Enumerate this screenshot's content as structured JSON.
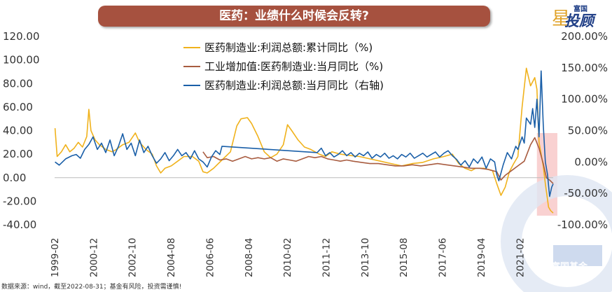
{
  "title": "医药：业绩什么时候会反转?",
  "source": "数据来源：wind，截至2022-08-31；基金有风险，投资需谨慎!",
  "brand": {
    "top": "富国",
    "main": "投顾",
    "star": "星",
    "watermark": "富国基金"
  },
  "chart_data": {
    "type": "line",
    "left_axis": {
      "min": -40,
      "max": 120,
      "step": 20,
      "ticks": [
        "-40.00",
        "-20.00",
        "0.00",
        "20.00",
        "40.00",
        "60.00",
        "80.00",
        "100.00",
        "120.00"
      ]
    },
    "right_axis": {
      "min": -100,
      "max": 200,
      "step": 50,
      "ticks": [
        "-100.00%",
        "-50.00%",
        "0.00%",
        "50.00%",
        "100.00%",
        "150.00%",
        "200.00%"
      ]
    },
    "x_ticks": [
      "1999-02",
      "2000-12",
      "2002-10",
      "2004-08",
      "2006-06",
      "2008-04",
      "2010-02",
      "2011-12",
      "2013-10",
      "2015-08",
      "2017-06",
      "2019-04",
      "2021-02"
    ],
    "x_range": [
      1999.08,
      2022.67
    ],
    "legend": [
      "医药制造业:利润总额:累计同比（%)",
      "工业增加值:医药制造业:当月同比（%)",
      "医药制造业:利润总额:当月同比（右轴)"
    ],
    "colors": [
      "#f0b21c",
      "#a85c40",
      "#1a5fa8"
    ],
    "highlight": {
      "x_from": 2021.9,
      "x_to": 2022.67,
      "color": "#f7c6c6"
    },
    "series": [
      {
        "name": "医药制造业:利润总额:累计同比（%)",
        "axis": "left",
        "points": [
          [
            1999.1,
            42
          ],
          [
            1999.2,
            18
          ],
          [
            1999.4,
            22
          ],
          [
            1999.6,
            28
          ],
          [
            1999.8,
            22
          ],
          [
            2000.0,
            25
          ],
          [
            2000.2,
            30
          ],
          [
            2000.4,
            26
          ],
          [
            2000.6,
            35
          ],
          [
            2000.7,
            58
          ],
          [
            2000.8,
            40
          ],
          [
            2001.0,
            32
          ],
          [
            2001.2,
            28
          ],
          [
            2001.5,
            24
          ],
          [
            2001.8,
            22
          ],
          [
            2002.0,
            24
          ],
          [
            2002.3,
            28
          ],
          [
            2002.6,
            30
          ],
          [
            2002.9,
            38
          ],
          [
            2003.1,
            30
          ],
          [
            2003.4,
            24
          ],
          [
            2003.7,
            20
          ],
          [
            2003.9,
            10
          ],
          [
            2004.1,
            4
          ],
          [
            2004.3,
            8
          ],
          [
            2004.6,
            10
          ],
          [
            2004.9,
            14
          ],
          [
            2005.2,
            18
          ],
          [
            2005.6,
            18
          ],
          [
            2005.9,
            14
          ],
          [
            2006.1,
            5
          ],
          [
            2006.3,
            4
          ],
          [
            2006.6,
            8
          ],
          [
            2007.0,
            15
          ],
          [
            2007.4,
            22
          ],
          [
            2007.7,
            44
          ],
          [
            2007.9,
            50
          ],
          [
            2008.2,
            51
          ],
          [
            2008.4,
            46
          ],
          [
            2008.7,
            35
          ],
          [
            2009.0,
            22
          ],
          [
            2009.3,
            17
          ],
          [
            2009.6,
            20
          ],
          [
            2009.9,
            28
          ],
          [
            2010.1,
            45
          ],
          [
            2010.3,
            40
          ],
          [
            2010.6,
            32
          ],
          [
            2010.9,
            26
          ],
          [
            2011.2,
            24
          ],
          [
            2011.6,
            20
          ],
          [
            2011.9,
            18
          ],
          [
            2012.2,
            22
          ],
          [
            2012.6,
            20
          ],
          [
            2013.0,
            19
          ],
          [
            2013.5,
            18
          ],
          [
            2014.0,
            16
          ],
          [
            2014.5,
            14
          ],
          [
            2015.0,
            12
          ],
          [
            2015.5,
            10
          ],
          [
            2016.0,
            12
          ],
          [
            2016.5,
            13
          ],
          [
            2017.0,
            16
          ],
          [
            2017.5,
            18
          ],
          [
            2017.9,
            20
          ],
          [
            2018.2,
            12
          ],
          [
            2018.5,
            8
          ],
          [
            2018.8,
            6
          ],
          [
            2019.0,
            8
          ],
          [
            2019.4,
            8
          ],
          [
            2019.8,
            6
          ],
          [
            2020.0,
            -5
          ],
          [
            2020.2,
            -15
          ],
          [
            2020.4,
            -8
          ],
          [
            2020.6,
            5
          ],
          [
            2020.8,
            12
          ],
          [
            2021.0,
            18
          ],
          [
            2021.2,
            60
          ],
          [
            2021.4,
            93
          ],
          [
            2021.6,
            78
          ],
          [
            2021.8,
            85
          ],
          [
            2021.9,
            75
          ],
          [
            2022.0,
            30
          ],
          [
            2022.2,
            10
          ],
          [
            2022.3,
            -5
          ],
          [
            2022.45,
            -25
          ],
          [
            2022.55,
            -28
          ],
          [
            2022.67,
            -30
          ]
        ]
      },
      {
        "name": "工业增加值:医药制造业:当月同比（%)",
        "axis": "left",
        "points": [
          [
            2006.1,
            22
          ],
          [
            2006.3,
            17
          ],
          [
            2006.6,
            18
          ],
          [
            2006.9,
            15
          ],
          [
            2007.2,
            16
          ],
          [
            2007.5,
            14
          ],
          [
            2007.8,
            16
          ],
          [
            2008.1,
            18
          ],
          [
            2008.4,
            16
          ],
          [
            2008.7,
            17
          ],
          [
            2009.0,
            16
          ],
          [
            2009.3,
            17
          ],
          [
            2009.6,
            14
          ],
          [
            2009.9,
            16
          ],
          [
            2010.2,
            15
          ],
          [
            2010.5,
            14
          ],
          [
            2010.8,
            16
          ],
          [
            2011.1,
            18
          ],
          [
            2011.4,
            17
          ],
          [
            2011.7,
            18
          ],
          [
            2012.0,
            16
          ],
          [
            2012.3,
            15
          ],
          [
            2012.6,
            14
          ],
          [
            2012.9,
            15
          ],
          [
            2013.2,
            14
          ],
          [
            2013.6,
            13
          ],
          [
            2014.0,
            12
          ],
          [
            2014.4,
            12
          ],
          [
            2014.8,
            11
          ],
          [
            2015.2,
            10
          ],
          [
            2015.6,
            10
          ],
          [
            2016.0,
            11
          ],
          [
            2016.4,
            10
          ],
          [
            2016.8,
            11
          ],
          [
            2017.2,
            12
          ],
          [
            2017.6,
            11
          ],
          [
            2018.0,
            10
          ],
          [
            2018.4,
            9
          ],
          [
            2018.8,
            8
          ],
          [
            2019.2,
            8
          ],
          [
            2019.6,
            7
          ],
          [
            2020.0,
            5
          ],
          [
            2020.2,
            -2
          ],
          [
            2020.4,
            2
          ],
          [
            2020.7,
            6
          ],
          [
            2021.0,
            10
          ],
          [
            2021.3,
            14
          ],
          [
            2021.6,
            28
          ],
          [
            2021.8,
            34
          ],
          [
            2022.0,
            25
          ],
          [
            2022.2,
            12
          ],
          [
            2022.35,
            0
          ],
          [
            2022.5,
            -2
          ],
          [
            2022.67,
            -5
          ]
        ]
      },
      {
        "name": "医药制造业:利润总额:当月同比（右轴)",
        "axis": "right",
        "points": [
          [
            1999.1,
            0
          ],
          [
            1999.3,
            -5
          ],
          [
            1999.6,
            5
          ],
          [
            1999.9,
            10
          ],
          [
            2000.1,
            12
          ],
          [
            2000.3,
            6
          ],
          [
            2000.5,
            20
          ],
          [
            2000.7,
            28
          ],
          [
            2000.9,
            40
          ],
          [
            2001.1,
            20
          ],
          [
            2001.3,
            30
          ],
          [
            2001.5,
            15
          ],
          [
            2001.7,
            35
          ],
          [
            2001.9,
            10
          ],
          [
            2002.1,
            25
          ],
          [
            2002.3,
            45
          ],
          [
            2002.5,
            20
          ],
          [
            2002.7,
            30
          ],
          [
            2002.9,
            10
          ],
          [
            2003.1,
            35
          ],
          [
            2003.3,
            15
          ],
          [
            2003.5,
            25
          ],
          [
            2003.7,
            10
          ],
          [
            2003.9,
            -2
          ],
          [
            2004.1,
            5
          ],
          [
            2004.3,
            15
          ],
          [
            2004.5,
            2
          ],
          [
            2004.7,
            10
          ],
          [
            2004.9,
            20
          ],
          [
            2005.1,
            10
          ],
          [
            2005.3,
            15
          ],
          [
            2005.5,
            5
          ],
          [
            2005.7,
            18
          ],
          [
            2005.9,
            5
          ],
          [
            2006.1,
            0
          ],
          [
            2006.3,
            -8
          ],
          [
            2006.5,
            8
          ],
          [
            2006.7,
            18
          ],
          [
            2006.9,
            12
          ],
          [
            2007.0,
            25
          ],
          [
            2011.5,
            15
          ],
          [
            2011.7,
            22
          ],
          [
            2011.9,
            10
          ],
          [
            2012.1,
            15
          ],
          [
            2012.3,
            8
          ],
          [
            2012.5,
            12
          ],
          [
            2012.7,
            18
          ],
          [
            2012.9,
            10
          ],
          [
            2013.1,
            15
          ],
          [
            2013.3,
            8
          ],
          [
            2013.5,
            14
          ],
          [
            2013.7,
            10
          ],
          [
            2013.9,
            16
          ],
          [
            2014.1,
            6
          ],
          [
            2014.3,
            12
          ],
          [
            2014.5,
            8
          ],
          [
            2014.7,
            14
          ],
          [
            2014.9,
            6
          ],
          [
            2015.1,
            10
          ],
          [
            2015.3,
            5
          ],
          [
            2015.5,
            12
          ],
          [
            2015.7,
            8
          ],
          [
            2015.9,
            14
          ],
          [
            2016.1,
            6
          ],
          [
            2016.3,
            10
          ],
          [
            2016.5,
            14
          ],
          [
            2016.7,
            8
          ],
          [
            2016.9,
            12
          ],
          [
            2017.1,
            16
          ],
          [
            2017.3,
            8
          ],
          [
            2017.5,
            14
          ],
          [
            2017.7,
            18
          ],
          [
            2017.9,
            10
          ],
          [
            2018.1,
            4
          ],
          [
            2018.3,
            -5
          ],
          [
            2018.5,
            2
          ],
          [
            2018.7,
            -8
          ],
          [
            2018.9,
            5
          ],
          [
            2019.1,
            -2
          ],
          [
            2019.3,
            8
          ],
          [
            2019.5,
            -10
          ],
          [
            2019.7,
            5
          ],
          [
            2019.9,
            0
          ],
          [
            2020.0,
            -20
          ],
          [
            2020.1,
            -30
          ],
          [
            2020.3,
            -5
          ],
          [
            2020.5,
            15
          ],
          [
            2020.7,
            5
          ],
          [
            2020.9,
            25
          ],
          [
            2021.0,
            20
          ],
          [
            2021.2,
            40
          ],
          [
            2021.3,
            30
          ],
          [
            2021.4,
            70
          ],
          [
            2021.6,
            60
          ],
          [
            2021.7,
            85
          ],
          [
            2021.8,
            55
          ],
          [
            2021.9,
            100
          ],
          [
            2022.0,
            40
          ],
          [
            2022.1,
            145
          ],
          [
            2022.2,
            60
          ],
          [
            2022.3,
            0
          ],
          [
            2022.4,
            -20
          ],
          [
            2022.5,
            -55
          ],
          [
            2022.6,
            -40
          ],
          [
            2022.67,
            -35
          ]
        ]
      }
    ]
  }
}
